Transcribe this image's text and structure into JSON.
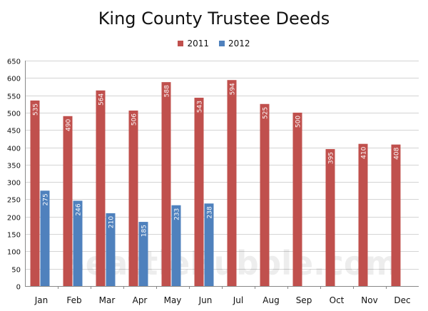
{
  "chart_data": {
    "type": "bar",
    "title": "King County Trustee Deeds",
    "categories": [
      "Jan",
      "Feb",
      "Mar",
      "Apr",
      "May",
      "Jun",
      "Jul",
      "Aug",
      "Sep",
      "Oct",
      "Nov",
      "Dec"
    ],
    "series": [
      {
        "name": "2011",
        "color": "#c0504d",
        "values": [
          535,
          490,
          564,
          506,
          588,
          543,
          594,
          525,
          500,
          395,
          410,
          408
        ]
      },
      {
        "name": "2012",
        "color": "#4f81bd",
        "values": [
          275,
          246,
          210,
          185,
          233,
          238,
          null,
          null,
          null,
          null,
          null,
          null
        ]
      }
    ],
    "ylim": [
      0,
      650
    ],
    "yticks": [
      0,
      50,
      100,
      150,
      200,
      250,
      300,
      350,
      400,
      450,
      500,
      550,
      600,
      650
    ],
    "xlabel": "",
    "ylabel": "",
    "grid": true,
    "legend_position": "top-center",
    "data_labels": true,
    "watermark": "SeattleBubble.com"
  }
}
